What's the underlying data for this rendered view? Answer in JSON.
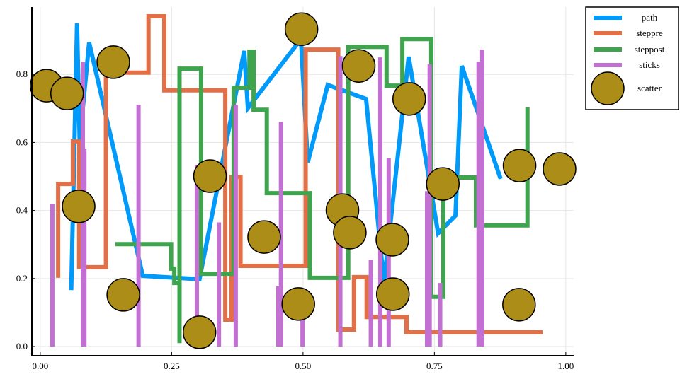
{
  "chart_data": {
    "type": "line",
    "title": "",
    "xlabel": "",
    "ylabel": "",
    "xlim": [
      -0.016,
      1.015
    ],
    "ylim": [
      -0.027,
      0.998
    ],
    "grid": true,
    "legend_position": "outer-top-right",
    "xticks": [
      0,
      0.25,
      0.5,
      0.75,
      1.0
    ],
    "xtick_labels": [
      "0.00",
      "0.25",
      "0.50",
      "0.75",
      "1.00"
    ],
    "yticks": [
      0,
      0.2,
      0.4,
      0.6,
      0.8
    ],
    "ytick_labels": [
      "0.0",
      "0.2",
      "0.4",
      "0.6",
      "0.8"
    ],
    "series": [
      {
        "name": "path",
        "kind": "path",
        "color": "#009afa",
        "x": [
          0.059,
          0.07,
          0.075,
          0.093,
          0.195,
          0.303,
          0.388,
          0.395,
          0.496,
          0.509,
          0.547,
          0.62,
          0.654,
          0.701,
          0.757,
          0.79,
          0.802,
          0.876
        ],
        "y": [
          0.166,
          0.95,
          0.603,
          0.894,
          0.208,
          0.198,
          0.869,
          0.701,
          0.904,
          0.541,
          0.769,
          0.728,
          0.187,
          0.852,
          0.333,
          0.385,
          0.825,
          0.493
        ]
      },
      {
        "name": "steppre",
        "kind": "steppre",
        "color": "#e36f47",
        "x": [
          0.034,
          0.062,
          0.074,
          0.125,
          0.206,
          0.236,
          0.352,
          0.364,
          0.381,
          0.505,
          0.567,
          0.597,
          0.621,
          0.697,
          0.956
        ],
        "y": [
          0.202,
          0.478,
          0.603,
          0.233,
          0.805,
          0.971,
          0.753,
          0.079,
          0.499,
          0.237,
          0.873,
          0.05,
          0.204,
          0.087,
          0.042
        ]
      },
      {
        "name": "steppost",
        "kind": "steppost",
        "color": "#3ea44e",
        "x": [
          0.143,
          0.249,
          0.255,
          0.265,
          0.265,
          0.306,
          0.368,
          0.398,
          0.406,
          0.431,
          0.513,
          0.586,
          0.659,
          0.689,
          0.744,
          0.767,
          0.829,
          0.927
        ],
        "y": [
          0.301,
          0.229,
          0.187,
          0.01,
          0.817,
          0.214,
          0.761,
          0.867,
          0.696,
          0.451,
          0.202,
          0.881,
          0.767,
          0.904,
          0.146,
          0.497,
          0.356,
          0.703
        ]
      },
      {
        "name": "sticks",
        "kind": "sticks",
        "color": "#c271d2",
        "x": [
          0.023,
          0.081,
          0.084,
          0.187,
          0.298,
          0.34,
          0.372,
          0.453,
          0.458,
          0.499,
          0.571,
          0.629,
          0.647,
          0.663,
          0.736,
          0.741,
          0.761,
          0.834,
          0.841
        ],
        "y": [
          0.42,
          0.837,
          0.582,
          0.711,
          0.534,
          0.365,
          0.711,
          0.177,
          0.661,
          0.1,
          0.854,
          0.255,
          0.85,
          0.553,
          0.457,
          0.83,
          0.187,
          0.837,
          0.873
        ]
      },
      {
        "name": "scatter",
        "kind": "scatter",
        "color": "#ac8d18",
        "x": [
          0.012,
          0.051,
          0.139,
          0.073,
          0.158,
          0.303,
          0.323,
          0.426,
          0.491,
          0.497,
          0.575,
          0.589,
          0.606,
          0.67,
          0.671,
          0.702,
          0.766,
          0.911,
          0.912,
          0.988
        ],
        "y": [
          0.767,
          0.744,
          0.836,
          0.412,
          0.152,
          0.042,
          0.501,
          0.322,
          0.125,
          0.933,
          0.401,
          0.335,
          0.825,
          0.314,
          0.154,
          0.728,
          0.478,
          0.123,
          0.532,
          0.522
        ]
      }
    ]
  }
}
